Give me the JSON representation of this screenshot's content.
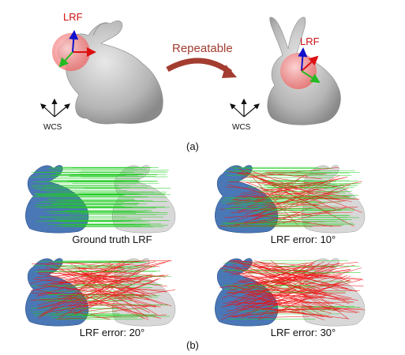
{
  "part_a": {
    "left_lrf_label": "LRF",
    "right_lrf_label": "LRF",
    "left_wcs_label": "WCS",
    "right_wcs_label": "WCS",
    "arrow_label": "Repeatable",
    "caption": "(a)"
  },
  "part_b": {
    "panels": [
      {
        "caption": "Ground truth LRF"
      },
      {
        "caption": "LRF error: 10°"
      },
      {
        "caption": "LRF error: 20°"
      },
      {
        "caption": "LRF error: 30°"
      }
    ],
    "caption": "(b)"
  },
  "colors": {
    "correct_match": "#22cc22",
    "wrong_match": "#ee1111",
    "source_cloud": "#2a5fa8",
    "target_cloud": "#b8b8b8",
    "axis_x": "#dd1111",
    "axis_y": "#22bb22",
    "axis_z": "#1111cc"
  },
  "icons": [
    "bunny-model",
    "lrf-axes",
    "wcs-axes",
    "curved-arrow"
  ]
}
